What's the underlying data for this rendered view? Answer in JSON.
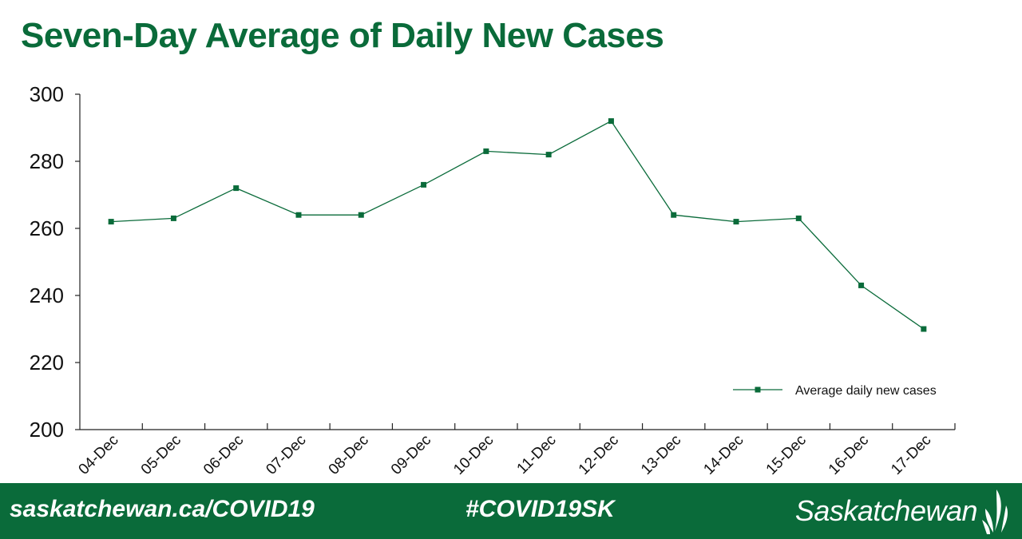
{
  "title": "Seven-Day Average of Daily New Cases",
  "chart_data": {
    "type": "line",
    "title": "Seven-Day Average of Daily New Cases",
    "xlabel": "",
    "ylabel": "",
    "categories": [
      "04-Dec",
      "05-Dec",
      "06-Dec",
      "07-Dec",
      "08-Dec",
      "09-Dec",
      "10-Dec",
      "11-Dec",
      "12-Dec",
      "13-Dec",
      "14-Dec",
      "15-Dec",
      "16-Dec",
      "17-Dec"
    ],
    "series": [
      {
        "name": "Average daily new cases",
        "values": [
          262,
          263,
          272,
          264,
          264,
          273,
          283,
          282,
          292,
          264,
          262,
          263,
          243,
          230
        ]
      }
    ],
    "ylim": [
      200,
      300
    ],
    "yticks": [
      200,
      220,
      240,
      260,
      280,
      300
    ],
    "legend_position": "bottom-right",
    "grid": false
  },
  "colors": {
    "brand_green": "#0a6b3a",
    "axis": "#222222"
  },
  "footer": {
    "url": "saskatchewan.ca/COVID19",
    "hashtag": "#COVID19SK",
    "brand": "Saskatchewan"
  }
}
